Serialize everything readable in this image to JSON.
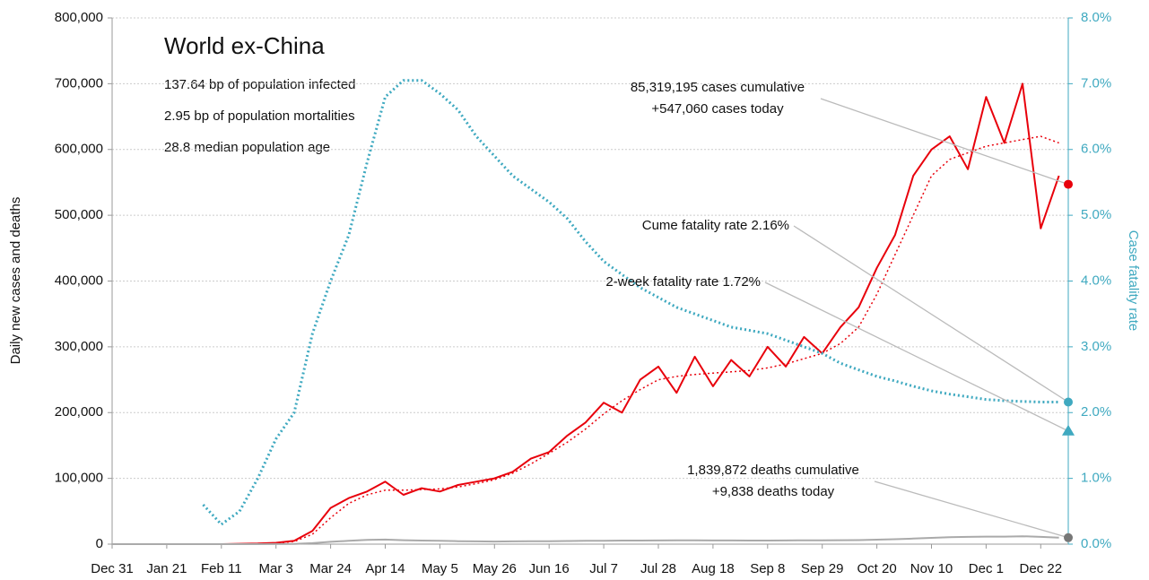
{
  "chart_data": {
    "type": "line",
    "title": "World ex-China",
    "subtitles": [
      "137.64 bp of population infected",
      "2.95 bp of population mortalities",
      "28.8 median population age"
    ],
    "y_label": "Daily new cases and deaths",
    "y2_label": "Case fatality rate",
    "x": [
      "Dec 31",
      "Jan 7",
      "Jan 14",
      "Jan 21",
      "Jan 28",
      "Feb 4",
      "Feb 11",
      "Feb 18",
      "Feb 25",
      "Mar 3",
      "Mar 10",
      "Mar 17",
      "Mar 24",
      "Mar 31",
      "Apr 7",
      "Apr 14",
      "Apr 21",
      "Apr 28",
      "May 5",
      "May 12",
      "May 19",
      "May 26",
      "Jun 2",
      "Jun 9",
      "Jun 16",
      "Jun 23",
      "Jun 30",
      "Jul 7",
      "Jul 14",
      "Jul 21",
      "Jul 28",
      "Aug 4",
      "Aug 11",
      "Aug 18",
      "Aug 25",
      "Sep 1",
      "Sep 8",
      "Sep 15",
      "Sep 22",
      "Sep 29",
      "Oct 6",
      "Oct 13",
      "Oct 20",
      "Oct 27",
      "Nov 3",
      "Nov 10",
      "Nov 17",
      "Nov 24",
      "Dec 1",
      "Dec 8",
      "Dec 15",
      "Dec 22",
      "Dec 29"
    ],
    "xticks": [
      "Dec 31",
      "Jan 21",
      "Feb 11",
      "Mar 3",
      "Mar 24",
      "Apr 14",
      "May 5",
      "May 26",
      "Jun 16",
      "Jul 7",
      "Jul 28",
      "Aug 18",
      "Sep 8",
      "Sep 29",
      "Oct 20",
      "Nov 10",
      "Dec 1",
      "Dec 22"
    ],
    "ylim": [
      0,
      800000
    ],
    "yticks": [
      0,
      {
        "value": 100000,
        "label": "100,000"
      },
      {
        "value": 200000,
        "label": "200,000"
      },
      {
        "value": 300000,
        "label": "300,000"
      },
      {
        "value": 400000,
        "label": "400,000"
      },
      {
        "value": 500000,
        "label": "500,000"
      },
      {
        "value": 600000,
        "label": "600,000"
      },
      {
        "value": 700000,
        "label": "700,000"
      },
      {
        "value": 800000,
        "label": "800,000"
      }
    ],
    "y2lim": [
      0,
      8
    ],
    "y2ticks": [
      {
        "value": 0,
        "label": "0.0%"
      },
      {
        "value": 1,
        "label": "1.0%"
      },
      {
        "value": 2,
        "label": "2.0%"
      },
      {
        "value": 3,
        "label": "3.0%"
      },
      {
        "value": 4,
        "label": "4.0%"
      },
      {
        "value": 5,
        "label": "5.0%"
      },
      {
        "value": 6,
        "label": "6.0%"
      },
      {
        "value": 7,
        "label": "7.0%"
      },
      {
        "value": 8,
        "label": "8.0%"
      }
    ],
    "grid": true,
    "series": [
      {
        "color": "#e8000b",
        "dash": "solid",
        "width": 2,
        "values": [
          0,
          0,
          0,
          0,
          0,
          0,
          0,
          500,
          1000,
          2000,
          5000,
          20000,
          55000,
          70000,
          80000,
          95000,
          75000,
          85000,
          80000,
          90000,
          95000,
          100000,
          110000,
          130000,
          140000,
          165000,
          185000,
          215000,
          200000,
          250000,
          270000,
          230000,
          285000,
          240000,
          280000,
          255000,
          300000,
          270000,
          315000,
          290000,
          330000,
          360000,
          420000,
          470000,
          560000,
          600000,
          620000,
          570000,
          680000,
          610000,
          700000,
          480000,
          560000
        ]
      },
      {
        "color": "#e8000b",
        "dash": "dotted",
        "width": 1.5,
        "values": [
          0,
          0,
          0,
          0,
          0,
          0,
          0,
          300,
          800,
          1500,
          4000,
          15000,
          40000,
          62000,
          75000,
          82000,
          82000,
          83000,
          84000,
          87000,
          92000,
          98000,
          108000,
          122000,
          138000,
          155000,
          175000,
          198000,
          218000,
          235000,
          250000,
          255000,
          258000,
          260000,
          262000,
          264000,
          268000,
          274000,
          282000,
          290000,
          305000,
          330000,
          380000,
          440000,
          500000,
          560000,
          585000,
          595000,
          605000,
          610000,
          615000,
          620000,
          610000
        ]
      },
      {
        "color": "#aaaaaa",
        "dash": "solid",
        "width": 2,
        "values": [
          0,
          0,
          0,
          0,
          0,
          0,
          0,
          10,
          20,
          100,
          400,
          1500,
          3500,
          5000,
          6500,
          7000,
          6000,
          5500,
          5000,
          4500,
          4200,
          4000,
          4200,
          4300,
          4500,
          4800,
          5000,
          5200,
          5400,
          5500,
          5600,
          5700,
          5700,
          5600,
          5600,
          5500,
          5500,
          5600,
          5800,
          5900,
          6000,
          6200,
          6800,
          7500,
          8500,
          9500,
          10500,
          11000,
          11500,
          11500,
          12000,
          11000,
          10000
        ]
      },
      {
        "color": "#3fa9c0",
        "dash": "dotted",
        "width": 3,
        "axis": "y2",
        "values": [
          null,
          null,
          null,
          null,
          null,
          0.6,
          0.3,
          0.5,
          1.0,
          1.6,
          2.0,
          3.2,
          4.0,
          4.7,
          5.8,
          6.8,
          7.05,
          7.05,
          6.85,
          6.6,
          6.2,
          5.9,
          5.6,
          5.4,
          5.2,
          4.95,
          4.6,
          4.3,
          4.1,
          3.9,
          3.75,
          3.6,
          3.5,
          3.4,
          3.3,
          3.25,
          3.2,
          3.1,
          3.0,
          2.9,
          2.75,
          2.65,
          2.55,
          2.48,
          2.4,
          2.33,
          2.28,
          2.24,
          2.2,
          2.18,
          2.17,
          2.16,
          2.16
        ]
      }
    ],
    "annotations": [
      {
        "lines": [
          "85,319,195 cases cumulative",
          "+547,060 cases today"
        ],
        "value": 547060,
        "color": "#e8000b",
        "marker": "circle"
      },
      {
        "lines": [
          "Cume fatality rate 2.16%"
        ],
        "value": 2.16,
        "axis": "y2",
        "color": "#3fa9c0",
        "marker": "circle"
      },
      {
        "lines": [
          "2-week fatality rate 1.72%"
        ],
        "value": 1.72,
        "axis": "y2",
        "color": "#3fa9c0",
        "marker": "triangle"
      },
      {
        "lines": [
          "1,839,872 deaths cumulative",
          "+9,838 deaths today"
        ],
        "value": 9838,
        "color": "#777777",
        "marker": "circle"
      }
    ]
  }
}
